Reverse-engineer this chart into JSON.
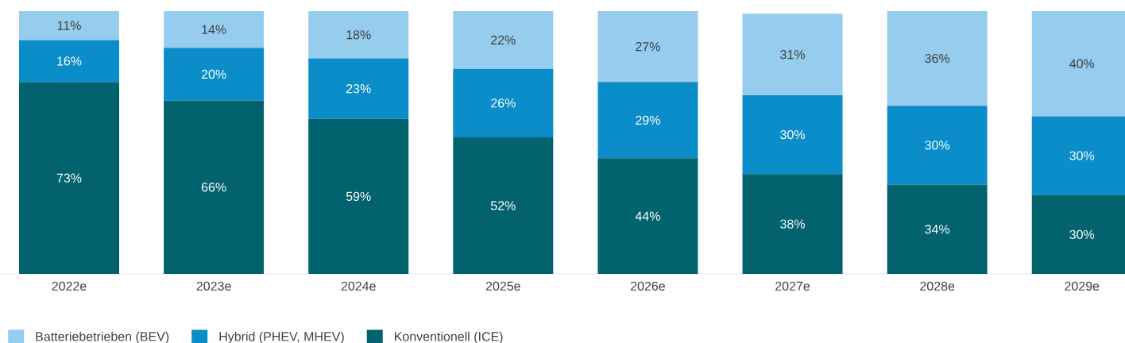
{
  "chart_data": {
    "type": "bar",
    "stacked": true,
    "tick_labels": "x",
    "legend": "bottom left",
    "categories": [
      "2022e",
      "2023e",
      "2024e",
      "2025e",
      "2026e",
      "2027e",
      "2028e",
      "2029e"
    ],
    "series": [
      {
        "name": "Konventionell (ICE)",
        "color": "#02626e",
        "values": [
          73,
          66,
          59,
          52,
          44,
          38,
          34,
          30
        ],
        "value_labels": [
          "73%",
          "66%",
          "59%",
          "52%",
          "44%",
          "38%",
          "34%",
          "30%"
        ]
      },
      {
        "name": "Hybrid (PHEV, MHEV)",
        "color": "#0a8dc8",
        "values": [
          16,
          20,
          23,
          26,
          29,
          30,
          30,
          30
        ],
        "value_labels": [
          "16%",
          "20%",
          "23%",
          "26%",
          "29%",
          "30%",
          "30%",
          "30%"
        ]
      },
      {
        "name": "Batteriebetrieben (BEV)",
        "color": "#96cdee",
        "values": [
          11,
          14,
          18,
          22,
          27,
          31,
          36,
          40
        ],
        "value_labels": [
          "11%",
          "14%",
          "18%",
          "22%",
          "27%",
          "31%",
          "36%",
          "40%"
        ]
      }
    ]
  }
}
